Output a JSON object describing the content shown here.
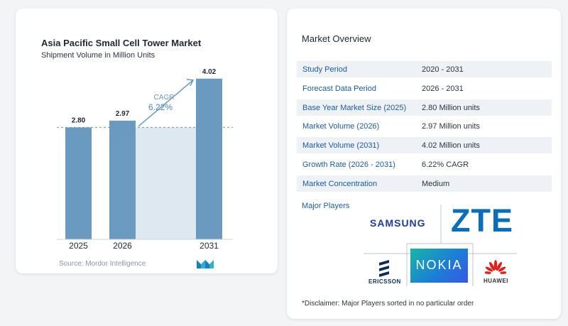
{
  "chart_data": {
    "type": "bar",
    "title": "Asia Pacific Small Cell Tower Market",
    "subtitle": "Shipment Volume in Million Units",
    "categories": [
      "2025",
      "2026",
      "2031"
    ],
    "values": [
      2.8,
      2.97,
      4.02
    ],
    "value_labels": [
      "2.80",
      "2.97",
      "4.02"
    ],
    "ylim": [
      0,
      4.3
    ],
    "annotation": {
      "label": "CAGR",
      "value": "6.22%"
    },
    "bar_color": "#6b9ac0",
    "band_color": "#dde8f1",
    "reference_line_value": 2.8
  },
  "source": "Source: Mordor Intelligence",
  "overview": {
    "title": "Market Overview",
    "rows": [
      {
        "label": "Study Period",
        "value": "2020 - 2031"
      },
      {
        "label": "Forecast Data Period",
        "value": "2026 - 2031"
      },
      {
        "label": "Base Year Market Size (2025)",
        "value": "2.80 Million units"
      },
      {
        "label": "Market Volume (2026)",
        "value": "2.97 Million units"
      },
      {
        "label": "Market Volume (2031)",
        "value": "4.02 Million units"
      },
      {
        "label": "Growth Rate (2026 - 2031)",
        "value": "6.22% CAGR"
      },
      {
        "label": "Market Concentration",
        "value": "Medium"
      }
    ]
  },
  "major_players": {
    "label": "Major Players",
    "logos": [
      "SAMSUNG",
      "ZTE",
      "ERICSSON",
      "NOKIA",
      "HUAWEI"
    ]
  },
  "disclaimer": "*Disclaimer: Major Players sorted in no particular order",
  "colors": {
    "accent_blue": "#1a5c9e",
    "row_shade": "#eef1f5"
  }
}
